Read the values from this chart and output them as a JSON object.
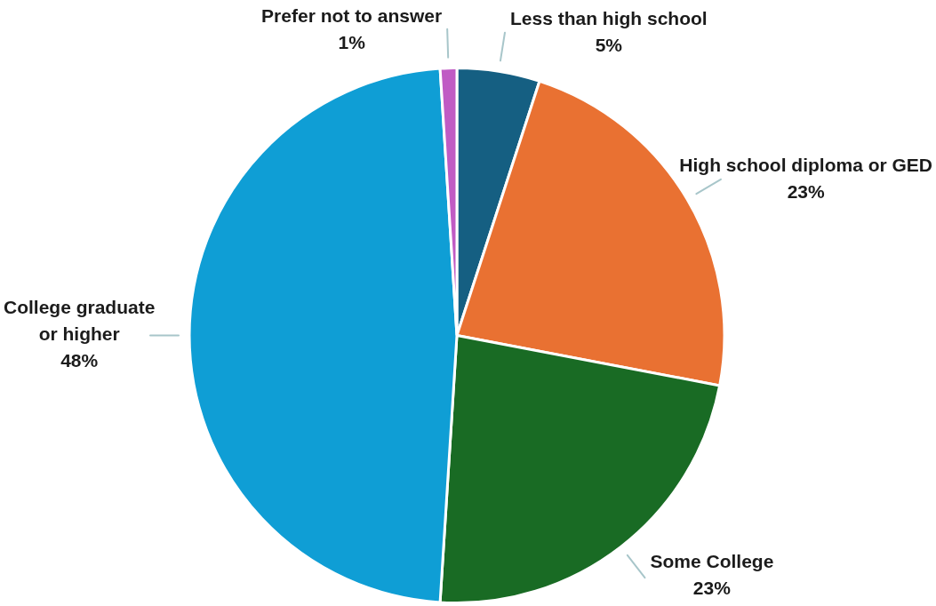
{
  "chart_data": {
    "type": "pie",
    "categories": [
      "Less than high school",
      "High school diploma or GED",
      "Some College",
      "College graduate or higher",
      "Prefer not to answer"
    ],
    "values": [
      5,
      23,
      23,
      48,
      1
    ],
    "colors": [
      "#155f82",
      "#e97132",
      "#196b24",
      "#0f9ed5",
      "#c05bc4"
    ],
    "value_labels": [
      "5%",
      "23%",
      "23%",
      "48%",
      "1%"
    ],
    "legend": false
  }
}
